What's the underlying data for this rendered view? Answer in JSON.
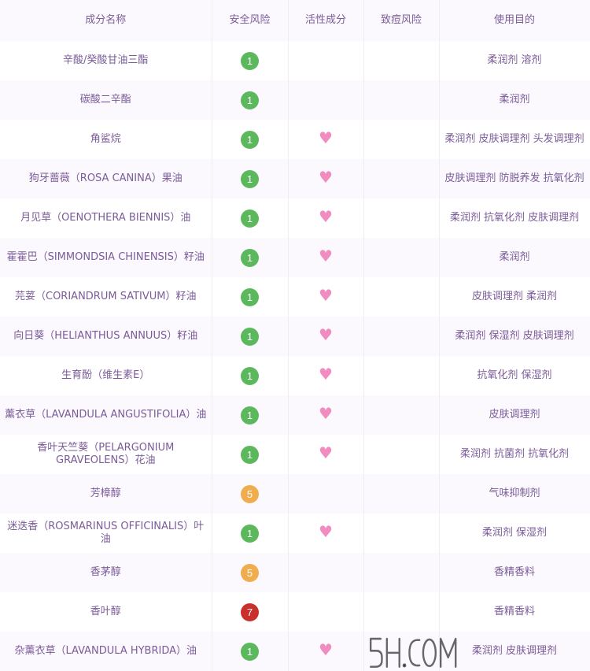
{
  "headers": [
    "成分名称",
    "安全风险",
    "活性成分",
    "致痘风险",
    "使用目的"
  ],
  "colors": {
    "1": "#5cb85c",
    "5": "#f0ad4e",
    "7": "#c9302c",
    "heart": "#f08cc0",
    "text": "#7b5c98"
  },
  "rows": [
    {
      "name": "辛酸/癸酸甘油三酯",
      "risk": "1",
      "active": false,
      "purpose": "柔润剂 溶剂"
    },
    {
      "name": "碳酸二辛酯",
      "risk": "1",
      "active": false,
      "purpose": "柔润剂"
    },
    {
      "name": "角鲨烷",
      "risk": "1",
      "active": true,
      "purpose": "柔润剂 皮肤调理剂 头发调理剂"
    },
    {
      "name": "狗牙蔷薇（ROSA CANINA）果油",
      "risk": "1",
      "active": true,
      "purpose": "皮肤调理剂 防脱养发 抗氧化剂"
    },
    {
      "name": "月见草（OENOTHERA BIENNIS）油",
      "risk": "1",
      "active": true,
      "purpose": "柔润剂 抗氧化剂 皮肤调理剂"
    },
    {
      "name": "霍霍巴（SIMMONDSIA CHINENSIS）籽油",
      "risk": "1",
      "active": true,
      "purpose": "柔润剂"
    },
    {
      "name": "芫荽（CORIANDRUM SATIVUM）籽油",
      "risk": "1",
      "active": true,
      "purpose": "皮肤调理剂 柔润剂"
    },
    {
      "name": "向日葵（HELIANTHUS ANNUUS）籽油",
      "risk": "1",
      "active": true,
      "purpose": "柔润剂 保湿剂 皮肤调理剂"
    },
    {
      "name": "生育酚（维生素E）",
      "risk": "1",
      "active": true,
      "purpose": "抗氧化剂 保湿剂"
    },
    {
      "name": "薰衣草（LAVANDULA ANGUSTIFOLIA）油",
      "risk": "1",
      "active": true,
      "purpose": "皮肤调理剂"
    },
    {
      "name": "香叶天竺葵（PELARGONIUM GRAVEOLENS）花油",
      "risk": "1",
      "active": true,
      "purpose": "柔润剂 抗菌剂 抗氧化剂"
    },
    {
      "name": "芳樟醇",
      "risk": "5",
      "active": false,
      "purpose": "气味抑制剂"
    },
    {
      "name": "迷迭香（ROSMARINUS OFFICINALIS）叶油",
      "risk": "1",
      "active": true,
      "purpose": "柔润剂 保湿剂"
    },
    {
      "name": "香茅醇",
      "risk": "5",
      "active": false,
      "purpose": "香精香料"
    },
    {
      "name": "香叶醇",
      "risk": "7",
      "active": false,
      "purpose": "香精香料"
    },
    {
      "name": "杂薰衣草（LAVANDULA HYBRIDA）油",
      "risk": "1",
      "active": true,
      "purpose": "柔润剂 皮肤调理剂"
    }
  ],
  "watermark": "5H.COM"
}
